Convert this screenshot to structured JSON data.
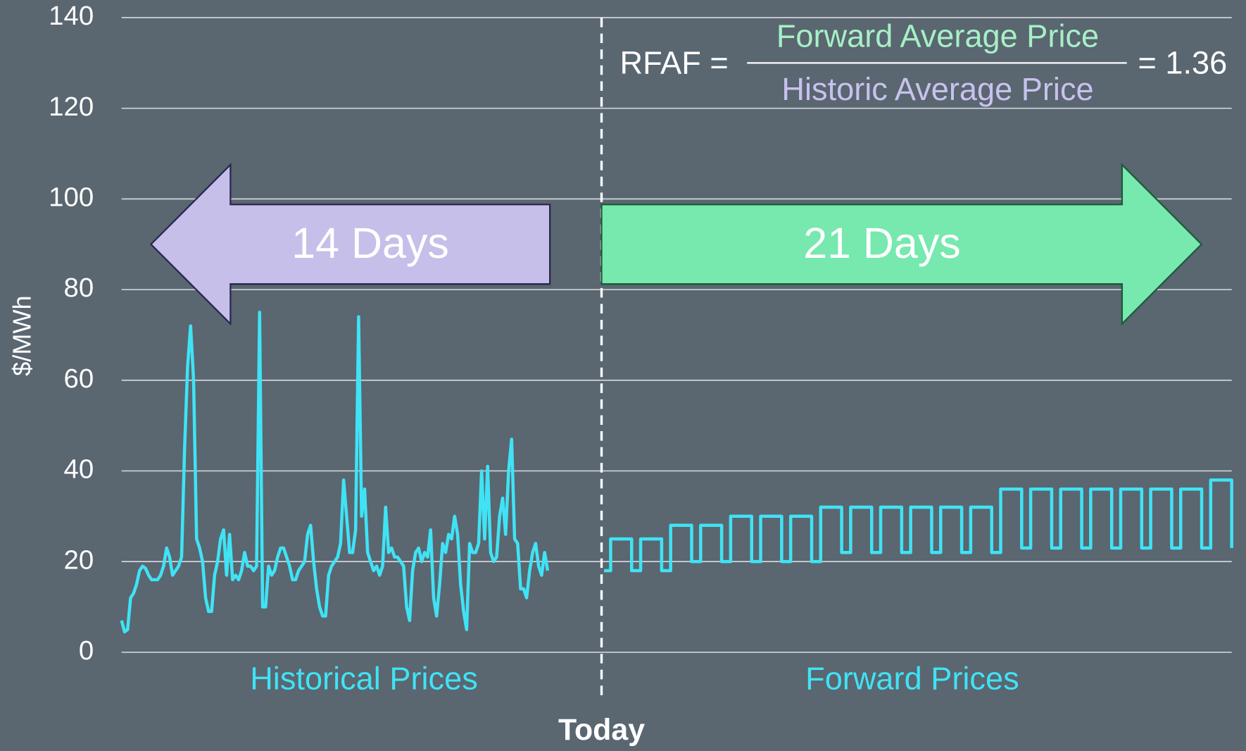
{
  "chart_data": {
    "type": "line",
    "ylabel": "$/MWh",
    "ylim": [
      0,
      140
    ],
    "yticks": [
      0,
      20,
      40,
      60,
      80,
      100,
      120,
      140
    ],
    "xlim": [
      -16,
      21
    ],
    "grid": true,
    "today_label": "Today",
    "back_window": "14 Days",
    "forward_window": "21 Days",
    "formula": {
      "lhs": "RFAF =",
      "numerator": "Forward Average Price",
      "denominator": "Historic Average Price",
      "result": "= 1.36"
    },
    "series": [
      {
        "name": "Historical Prices",
        "color": "#3fe3f5",
        "x": [
          -16,
          -15.9,
          -15.8,
          -15.7,
          -15.6,
          -15.5,
          -15.4,
          -15.3,
          -15.2,
          -15.1,
          -15,
          -14.9,
          -14.8,
          -14.7,
          -14.6,
          -14.5,
          -14.4,
          -14.3,
          -14.2,
          -14.1,
          -14,
          -13.9,
          -13.8,
          -13.7,
          -13.6,
          -13.5,
          -13.4,
          -13.3,
          -13.2,
          -13.1,
          -13,
          -12.9,
          -12.8,
          -12.7,
          -12.6,
          -12.5,
          -12.4,
          -12.3,
          -12.2,
          -12.1,
          -12,
          -11.9,
          -11.8,
          -11.7,
          -11.6,
          -11.5,
          -11.4,
          -11.3,
          -11.2,
          -11.1,
          -11,
          -10.9,
          -10.8,
          -10.7,
          -10.6,
          -10.5,
          -10.4,
          -10.3,
          -10.2,
          -10.1,
          -10,
          -9.9,
          -9.8,
          -9.7,
          -9.6,
          -9.5,
          -9.4,
          -9.3,
          -9.2,
          -9.1,
          -9,
          -8.9,
          -8.8,
          -8.7,
          -8.6,
          -8.5,
          -8.4,
          -8.3,
          -8.2,
          -8.1,
          -8,
          -7.9,
          -7.8,
          -7.7,
          -7.6,
          -7.5,
          -7.4,
          -7.3,
          -7.2,
          -7.1,
          -7,
          -6.9,
          -6.8,
          -6.7,
          -6.6,
          -6.5,
          -6.4,
          -6.3,
          -6.2,
          -6.1,
          -6,
          -5.9,
          -5.8,
          -5.7,
          -5.6,
          -5.5,
          -5.4,
          -5.3,
          -5.2,
          -5.1,
          -5,
          -4.9,
          -4.8,
          -4.7,
          -4.6,
          -4.5,
          -4.4,
          -4.3,
          -4.2,
          -4.1,
          -4,
          -3.9,
          -3.8,
          -3.7,
          -3.6,
          -3.5,
          -3.4,
          -3.3,
          -3.2,
          -3.1,
          -3,
          -2.9,
          -2.8,
          -2.7,
          -2.6,
          -2.5,
          -2.4,
          -2.3,
          -2.2,
          -2.1,
          -2,
          -1.9,
          -1.8
        ],
        "values": [
          7,
          4.5,
          5,
          12,
          13,
          15,
          18,
          19,
          18.5,
          17,
          16,
          16,
          16,
          17,
          19,
          23,
          21,
          17,
          18,
          19,
          21,
          45,
          63,
          72,
          60,
          25,
          23,
          20,
          12,
          9,
          9,
          17,
          20,
          25,
          27,
          17,
          26,
          16,
          17,
          16,
          18,
          22,
          19,
          19,
          18,
          19,
          75,
          10,
          10,
          19,
          17,
          18,
          21,
          23,
          23,
          21,
          19,
          16,
          16,
          18,
          19,
          20,
          26,
          28,
          20,
          14,
          10,
          8,
          8,
          17,
          19,
          20,
          21,
          24,
          38,
          30,
          22,
          22,
          27,
          74,
          30,
          36,
          22,
          20,
          18,
          19,
          17,
          19,
          32,
          22,
          23,
          21,
          21,
          20,
          19,
          10,
          7,
          18,
          22,
          23,
          20,
          22,
          21,
          27,
          12,
          8,
          15,
          24,
          22,
          26,
          25,
          30,
          26,
          15,
          9,
          5,
          24,
          22,
          22,
          24,
          40,
          25,
          41,
          22,
          20,
          21,
          30,
          34,
          26,
          40,
          47,
          25,
          24,
          14,
          14,
          12,
          18,
          22,
          24,
          19,
          17,
          22,
          18
        ]
      },
      {
        "name": "Forward Prices",
        "color": "#3fe3f5",
        "x": [
          0.08,
          0.3,
          0.3,
          1,
          1,
          1.3,
          1.3,
          2,
          2,
          2.3,
          2.3,
          3,
          3,
          3.3,
          3.3,
          4,
          4,
          4.3,
          4.3,
          5,
          5,
          5.3,
          5.3,
          6,
          6,
          6.3,
          6.3,
          7,
          7,
          7.3,
          7.3,
          8,
          8,
          8.3,
          8.3,
          9,
          9,
          9.3,
          9.3,
          10,
          10,
          10.3,
          10.3,
          11,
          11,
          11.3,
          11.3,
          12,
          12,
          12.3,
          12.3,
          13,
          13,
          13.3,
          13.3,
          14,
          14,
          14.3,
          14.3,
          15,
          15,
          15.3,
          15.3,
          16,
          16,
          16.3,
          16.3,
          17,
          17,
          17.3,
          17.3,
          18,
          18,
          18.3,
          18.3,
          19,
          19,
          19.3,
          19.3,
          20,
          20,
          20.3,
          20.3,
          21,
          21
        ],
        "values": [
          18,
          18,
          25,
          25,
          18,
          18,
          25,
          25,
          18,
          18,
          28,
          28,
          20,
          20,
          28,
          28,
          20,
          20,
          30,
          30,
          20,
          20,
          30,
          30,
          20,
          20,
          30,
          30,
          20,
          20,
          32,
          32,
          22,
          22,
          32,
          32,
          22,
          22,
          32,
          32,
          22,
          22,
          32,
          32,
          22,
          22,
          32,
          32,
          22,
          22,
          32,
          32,
          22,
          22,
          36,
          36,
          23,
          23,
          36,
          36,
          23,
          23,
          36,
          36,
          23,
          23,
          36,
          36,
          23,
          23,
          36,
          36,
          23,
          23,
          36,
          36,
          23,
          23,
          36,
          36,
          23,
          23,
          38,
          38,
          23
        ]
      }
    ]
  }
}
